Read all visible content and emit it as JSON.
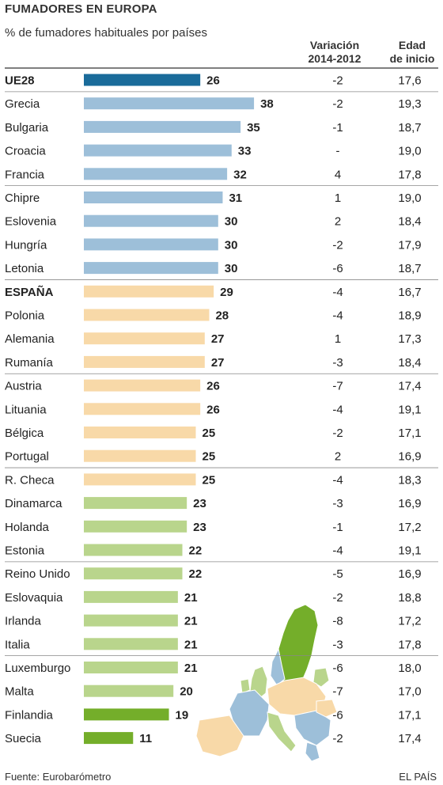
{
  "title": "FUMADORES EN EUROPA",
  "subtitle": "% de fumadores habituales por países",
  "columns": {
    "variation": [
      "Variación",
      "2014-2012"
    ],
    "age": [
      "Edad",
      "de inicio"
    ]
  },
  "source": "Fuente: Eurobarómetro",
  "credit": "EL PAÍS",
  "colors": {
    "ue28": "#1a6b9a",
    "blue": "#9dbfd9",
    "orange": "#f8d9a8",
    "lightgreen": "#b9d58c",
    "green": "#74ae2a",
    "divider": "#888888"
  },
  "chart_data": {
    "type": "bar",
    "orientation": "horizontal",
    "categories": [
      "UE28",
      "Grecia",
      "Bulgaria",
      "Croacia",
      "Francia",
      "Chipre",
      "Eslovenia",
      "Hungría",
      "Letonia",
      "ESPAÑA",
      "Polonia",
      "Alemania",
      "Rumanía",
      "Austria",
      "Lituania",
      "Bélgica",
      "Portugal",
      "R. Checa",
      "Dinamarca",
      "Holanda",
      "Estonia",
      "Reino Unido",
      "Eslovaquia",
      "Irlanda",
      "Italia",
      "Luxemburgo",
      "Malta",
      "Finlandia",
      "Suecia"
    ],
    "values": [
      26,
      38,
      35,
      33,
      32,
      31,
      30,
      30,
      30,
      29,
      28,
      27,
      27,
      26,
      26,
      25,
      25,
      25,
      23,
      23,
      22,
      22,
      21,
      21,
      21,
      21,
      20,
      19,
      11
    ],
    "variation": [
      "-2",
      "-2",
      "-1",
      "-",
      "4",
      "1",
      "2",
      "-2",
      "-6",
      "-4",
      "-4",
      "1",
      "-3",
      "-7",
      "-4",
      "-2",
      "2",
      "-4",
      "-3",
      "-1",
      "-4",
      "-5",
      "-2",
      "-8",
      "-3",
      "-6",
      "-7",
      "-6",
      "-2"
    ],
    "start_age": [
      "17,6",
      "19,3",
      "18,7",
      "19,0",
      "17,8",
      "19,0",
      "18,4",
      "17,9",
      "18,7",
      "16,7",
      "18,9",
      "17,3",
      "18,4",
      "17,4",
      "19,1",
      "17,1",
      "16,9",
      "18,3",
      "16,9",
      "17,2",
      "19,1",
      "16,9",
      "18,8",
      "17,2",
      "17,8",
      "18,0",
      "17,0",
      "17,1",
      "17,4"
    ],
    "color_groups": [
      "ue28",
      "blue",
      "blue",
      "blue",
      "blue",
      "blue",
      "blue",
      "blue",
      "blue",
      "orange",
      "orange",
      "orange",
      "orange",
      "orange",
      "orange",
      "orange",
      "orange",
      "orange",
      "lightgreen",
      "lightgreen",
      "lightgreen",
      "lightgreen",
      "lightgreen",
      "lightgreen",
      "lightgreen",
      "lightgreen",
      "lightgreen",
      "green",
      "green"
    ],
    "bold_labels": [
      "UE28",
      "ESPAÑA"
    ],
    "xlim": [
      0,
      38
    ]
  },
  "map": {
    "label": "map-of-europe"
  }
}
